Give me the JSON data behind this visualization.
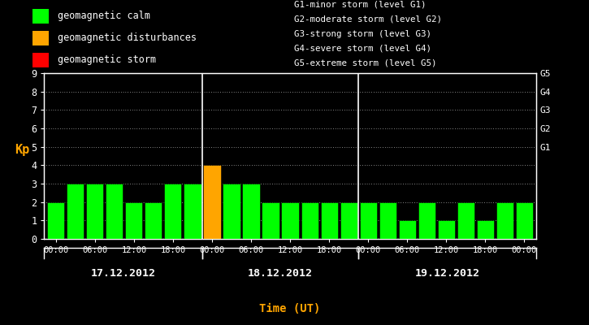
{
  "bg_color": "#000000",
  "bar_values": [
    2,
    3,
    3,
    3,
    2,
    2,
    3,
    3,
    4,
    3,
    3,
    2,
    2,
    2,
    2,
    2,
    2,
    2,
    1,
    2,
    1,
    2,
    1,
    2,
    2
  ],
  "bar_colors": [
    "#00ff00",
    "#00ff00",
    "#00ff00",
    "#00ff00",
    "#00ff00",
    "#00ff00",
    "#00ff00",
    "#00ff00",
    "#ffa500",
    "#00ff00",
    "#00ff00",
    "#00ff00",
    "#00ff00",
    "#00ff00",
    "#00ff00",
    "#00ff00",
    "#00ff00",
    "#00ff00",
    "#00ff00",
    "#00ff00",
    "#00ff00",
    "#00ff00",
    "#00ff00",
    "#00ff00",
    "#00ff00"
  ],
  "ylabel": "Kp",
  "ylabel_color": "#ffa500",
  "xlabel": "Time (UT)",
  "xlabel_color": "#ffa500",
  "ylim": [
    0,
    9
  ],
  "yticks": [
    0,
    1,
    2,
    3,
    4,
    5,
    6,
    7,
    8,
    9
  ],
  "tick_color": "#ffffff",
  "spine_color": "#ffffff",
  "day_labels": [
    "17.12.2012",
    "18.12.2012",
    "19.12.2012"
  ],
  "vline_color": "#ffffff",
  "right_labels": [
    "G5",
    "G4",
    "G3",
    "G2",
    "G1"
  ],
  "right_label_yvals": [
    9,
    8,
    7,
    6,
    5
  ],
  "right_label_color": "#ffffff",
  "legend_calm_color": "#00ff00",
  "legend_dist_color": "#ffa500",
  "legend_storm_color": "#ff0000",
  "legend_calm_text": "geomagnetic calm",
  "legend_dist_text": "geomagnetic disturbances",
  "legend_storm_text": "geomagnetic storm",
  "legend_text_color": "#ffffff",
  "g_labels": [
    "G1-minor storm (level G1)",
    "G2-moderate storm (level G2)",
    "G3-strong storm (level G3)",
    "G4-severe storm (level G4)",
    "G5-extreme storm (level G5)"
  ],
  "g_labels_color": "#ffffff"
}
